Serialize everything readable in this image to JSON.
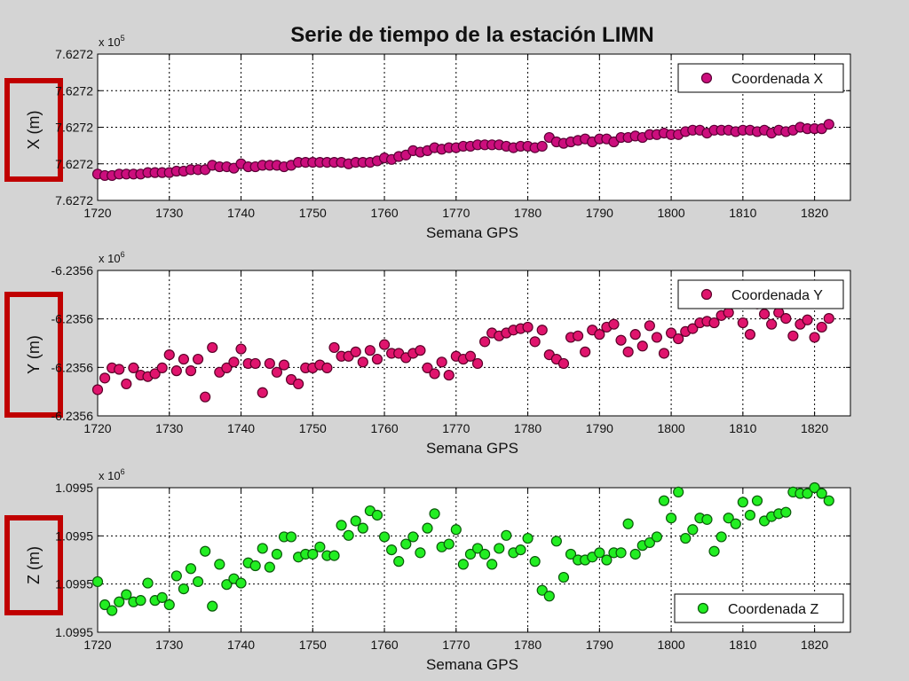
{
  "figure": {
    "title": "Serie de tiempo de la estación LIMN"
  },
  "colors": {
    "background": "#d4d4d4",
    "plot_bg": "#ffffff",
    "red_box": "#c00000",
    "x_fill": "#cc0e7d",
    "y_fill": "#e0146d",
    "z_fill": "#22ee22"
  },
  "chart_data": [
    {
      "type": "scatter",
      "title": "Serie de tiempo de la estación LIMN",
      "xlabel": "Semana GPS",
      "ylabel": "X (m)",
      "exponent_label": "x 10",
      "exponent_sup": "5",
      "xlim": [
        1720,
        1825
      ],
      "ylim": [
        0,
        1
      ],
      "xticks": [
        "1720",
        "1730",
        "1740",
        "1750",
        "1760",
        "1770",
        "1780",
        "1790",
        "1800",
        "1810",
        "1820"
      ],
      "yticks": [
        "7.6272",
        "7.6272",
        "7.6272",
        "7.6272",
        "7.6272"
      ],
      "grid": true,
      "legend": "top-right",
      "series": [
        {
          "name": "Coordenada X",
          "marker_color": "#cc0e7d",
          "x": [
            1720,
            1721,
            1722,
            1723,
            1724,
            1725,
            1726,
            1727,
            1728,
            1729,
            1730,
            1731,
            1732,
            1733,
            1734,
            1735,
            1736,
            1737,
            1738,
            1739,
            1740,
            1741,
            1742,
            1743,
            1744,
            1745,
            1746,
            1747,
            1748,
            1749,
            1750,
            1751,
            1752,
            1753,
            1754,
            1755,
            1756,
            1757,
            1758,
            1759,
            1760,
            1761,
            1762,
            1763,
            1764,
            1765,
            1766,
            1767,
            1768,
            1769,
            1770,
            1771,
            1772,
            1773,
            1774,
            1775,
            1776,
            1777,
            1778,
            1779,
            1780,
            1781,
            1782,
            1783,
            1784,
            1785,
            1786,
            1787,
            1788,
            1789,
            1790,
            1791,
            1792,
            1793,
            1794,
            1795,
            1796,
            1797,
            1798,
            1799,
            1800,
            1801,
            1802,
            1803,
            1804,
            1805,
            1806,
            1807,
            1808,
            1809,
            1810,
            1811,
            1812,
            1813,
            1814,
            1815,
            1816,
            1817,
            1818,
            1819,
            1820,
            1821,
            1822
          ],
          "y": [
            0.18,
            0.17,
            0.17,
            0.18,
            0.18,
            0.18,
            0.18,
            0.19,
            0.19,
            0.19,
            0.19,
            0.2,
            0.2,
            0.21,
            0.21,
            0.21,
            0.24,
            0.23,
            0.23,
            0.22,
            0.25,
            0.23,
            0.23,
            0.24,
            0.24,
            0.24,
            0.23,
            0.24,
            0.26,
            0.26,
            0.26,
            0.26,
            0.26,
            0.26,
            0.26,
            0.25,
            0.26,
            0.26,
            0.26,
            0.27,
            0.29,
            0.28,
            0.3,
            0.31,
            0.34,
            0.33,
            0.34,
            0.36,
            0.35,
            0.36,
            0.36,
            0.37,
            0.37,
            0.38,
            0.38,
            0.38,
            0.38,
            0.37,
            0.36,
            0.37,
            0.37,
            0.36,
            0.37,
            0.43,
            0.4,
            0.39,
            0.4,
            0.41,
            0.42,
            0.4,
            0.42,
            0.42,
            0.4,
            0.43,
            0.43,
            0.44,
            0.43,
            0.45,
            0.45,
            0.46,
            0.45,
            0.45,
            0.47,
            0.48,
            0.48,
            0.46,
            0.48,
            0.48,
            0.48,
            0.47,
            0.48,
            0.48,
            0.47,
            0.48,
            0.46,
            0.48,
            0.47,
            0.48,
            0.5,
            0.49,
            0.49,
            0.49,
            0.52
          ]
        }
      ]
    },
    {
      "type": "scatter",
      "xlabel": "Semana GPS",
      "ylabel": "Y (m)",
      "exponent_label": "x 10",
      "exponent_sup": "6",
      "xlim": [
        1720,
        1825
      ],
      "ylim": [
        0,
        1
      ],
      "xticks": [
        "1720",
        "1730",
        "1740",
        "1750",
        "1760",
        "1770",
        "1780",
        "1790",
        "1800",
        "1810",
        "1820"
      ],
      "yticks": [
        "-6.2356",
        "-6.2356",
        "-6.2356",
        "-6.2356"
      ],
      "grid": true,
      "legend": "top-right",
      "series": [
        {
          "name": "Coordenada Y",
          "marker_color": "#e0146d",
          "x": [
            1720,
            1721,
            1722,
            1723,
            1724,
            1725,
            1726,
            1727,
            1728,
            1729,
            1730,
            1731,
            1732,
            1733,
            1734,
            1735,
            1736,
            1737,
            1738,
            1739,
            1740,
            1741,
            1742,
            1743,
            1744,
            1745,
            1746,
            1747,
            1748,
            1749,
            1750,
            1751,
            1752,
            1753,
            1754,
            1755,
            1756,
            1757,
            1758,
            1759,
            1760,
            1761,
            1762,
            1763,
            1764,
            1765,
            1766,
            1767,
            1768,
            1769,
            1770,
            1771,
            1772,
            1773,
            1774,
            1775,
            1776,
            1777,
            1778,
            1779,
            1780,
            1781,
            1782,
            1783,
            1784,
            1785,
            1786,
            1787,
            1788,
            1789,
            1790,
            1791,
            1792,
            1793,
            1794,
            1795,
            1796,
            1797,
            1798,
            1799,
            1800,
            1801,
            1802,
            1803,
            1804,
            1805,
            1806,
            1807,
            1808,
            1809,
            1810,
            1811,
            1812,
            1813,
            1814,
            1815,
            1816,
            1817,
            1818,
            1819,
            1820,
            1821,
            1822
          ],
          "y": [
            0.18,
            0.26,
            0.33,
            0.32,
            0.22,
            0.33,
            0.28,
            0.27,
            0.29,
            0.33,
            0.42,
            0.31,
            0.39,
            0.31,
            0.39,
            0.13,
            0.47,
            0.3,
            0.33,
            0.37,
            0.46,
            0.36,
            0.36,
            0.16,
            0.36,
            0.3,
            0.35,
            0.25,
            0.22,
            0.33,
            0.33,
            0.35,
            0.33,
            0.47,
            0.41,
            0.41,
            0.44,
            0.37,
            0.45,
            0.39,
            0.49,
            0.43,
            0.43,
            0.4,
            0.43,
            0.45,
            0.33,
            0.29,
            0.37,
            0.28,
            0.41,
            0.39,
            0.41,
            0.36,
            0.51,
            0.57,
            0.55,
            0.57,
            0.59,
            0.6,
            0.61,
            0.51,
            0.59,
            0.42,
            0.39,
            0.36,
            0.54,
            0.55,
            0.44,
            0.59,
            0.56,
            0.61,
            0.63,
            0.52,
            0.44,
            0.56,
            0.48,
            0.62,
            0.54,
            0.43,
            0.57,
            0.53,
            0.58,
            0.6,
            0.64,
            0.65,
            0.64,
            0.69,
            0.71,
            0.78,
            0.64,
            0.56,
            0.77,
            0.7,
            0.63,
            0.71,
            0.67,
            0.55,
            0.63,
            0.66,
            0.54,
            0.61,
            0.67
          ]
        }
      ]
    },
    {
      "type": "scatter",
      "xlabel": "Semana GPS",
      "ylabel": "Z (m)",
      "exponent_label": "x 10",
      "exponent_sup": "6",
      "xlim": [
        1720,
        1825
      ],
      "ylim": [
        0,
        1
      ],
      "xticks": [
        "1720",
        "1730",
        "1740",
        "1750",
        "1760",
        "1770",
        "1780",
        "1790",
        "1800",
        "1810",
        "1820"
      ],
      "yticks": [
        "1.0995",
        "1.0995",
        "1.0995",
        "1.0995"
      ],
      "grid": true,
      "legend": "bottom-right",
      "series": [
        {
          "name": "Coordenada Z",
          "marker_color": "#22ee22",
          "x": [
            1720,
            1721,
            1722,
            1723,
            1724,
            1725,
            1726,
            1727,
            1728,
            1729,
            1730,
            1731,
            1732,
            1733,
            1734,
            1735,
            1736,
            1737,
            1738,
            1739,
            1740,
            1741,
            1742,
            1743,
            1744,
            1745,
            1746,
            1747,
            1748,
            1749,
            1750,
            1751,
            1752,
            1753,
            1754,
            1755,
            1756,
            1757,
            1758,
            1759,
            1760,
            1761,
            1762,
            1763,
            1764,
            1765,
            1766,
            1767,
            1768,
            1769,
            1770,
            1771,
            1772,
            1773,
            1774,
            1775,
            1776,
            1777,
            1778,
            1779,
            1780,
            1781,
            1782,
            1783,
            1784,
            1785,
            1786,
            1787,
            1788,
            1789,
            1790,
            1791,
            1792,
            1793,
            1794,
            1795,
            1796,
            1797,
            1798,
            1799,
            1800,
            1801,
            1802,
            1803,
            1804,
            1805,
            1806,
            1807,
            1808,
            1809,
            1810,
            1811,
            1812,
            1813,
            1814,
            1815,
            1816,
            1817,
            1818,
            1819,
            1820,
            1821,
            1822
          ],
          "y": [
            0.35,
            0.19,
            0.15,
            0.21,
            0.26,
            0.21,
            0.22,
            0.34,
            0.22,
            0.24,
            0.19,
            0.39,
            0.3,
            0.44,
            0.35,
            0.56,
            0.18,
            0.47,
            0.33,
            0.37,
            0.34,
            0.48,
            0.46,
            0.58,
            0.45,
            0.54,
            0.66,
            0.66,
            0.52,
            0.54,
            0.54,
            0.59,
            0.53,
            0.53,
            0.74,
            0.67,
            0.77,
            0.72,
            0.84,
            0.81,
            0.66,
            0.57,
            0.49,
            0.61,
            0.66,
            0.55,
            0.72,
            0.82,
            0.59,
            0.61,
            0.71,
            0.47,
            0.54,
            0.58,
            0.54,
            0.47,
            0.58,
            0.67,
            0.55,
            0.57,
            0.65,
            0.49,
            0.29,
            0.25,
            0.63,
            0.38,
            0.54,
            0.5,
            0.5,
            0.52,
            0.55,
            0.5,
            0.55,
            0.55,
            0.75,
            0.54,
            0.6,
            0.62,
            0.66,
            0.91,
            0.79,
            0.97,
            0.65,
            0.71,
            0.79,
            0.78,
            0.56,
            0.66,
            0.79,
            0.75,
            0.9,
            0.81,
            0.91,
            0.77,
            0.8,
            0.82,
            0.83,
            0.97,
            0.96,
            0.96,
            1.0,
            0.96,
            0.91
          ]
        }
      ]
    }
  ]
}
